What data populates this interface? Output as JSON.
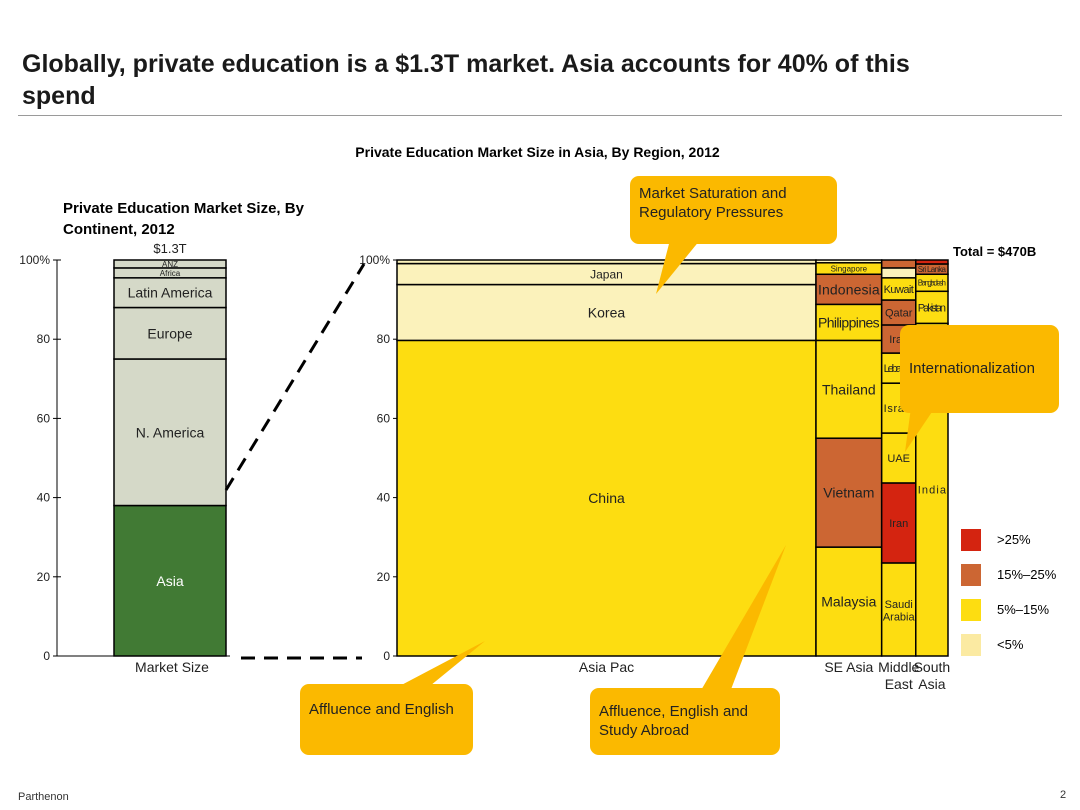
{
  "page": {
    "title": "Globally, private education is a $1.3T market. Asia accounts for 40% of this spend",
    "footer": "Parthenon",
    "page_number": "2"
  },
  "callouts": {
    "saturation": "Market Saturation and Regulatory  Pressures",
    "internationalization": "Internationalization",
    "affluence_english": "Affluence and English",
    "affluence_abroad": "Affluence, English and Study Abroad"
  },
  "legend": [
    {
      "label": ">25%",
      "color": "#d42410"
    },
    {
      "label": "15%–25%",
      "color": "#cc6633"
    },
    {
      "label": "5%–15%",
      "color": "#fddd11"
    },
    {
      "label": "<5%",
      "color": "#fbeaa2"
    }
  ],
  "chart_data": [
    {
      "type": "bar",
      "title": "Private Education Market Size, By Continent, 2012",
      "categories": [
        "Market Size"
      ],
      "total_label": "$1.3T",
      "ylim": [
        0,
        100
      ],
      "yticks": [
        "0",
        "20",
        "40",
        "60",
        "80",
        "100%"
      ],
      "segments": [
        {
          "label": "Asia",
          "value": 38,
          "color": "#417a34"
        },
        {
          "label": "N. America",
          "value": 37,
          "color": "#d5d9c8"
        },
        {
          "label": "Europe",
          "value": 13,
          "color": "#d5d9c8"
        },
        {
          "label": "Latin America",
          "value": 7.5,
          "color": "#d5d9c8"
        },
        {
          "label": "Africa",
          "value": 2.5,
          "color": "#d5d9c8"
        },
        {
          "label": "ANZ",
          "value": 2,
          "color": "#d5d9c8"
        }
      ]
    },
    {
      "type": "bar",
      "title": "Private Education Market Size in Asia, By Region, 2012",
      "total_label": "Total = $470B",
      "ylim": [
        0,
        100
      ],
      "yticks": [
        "0",
        "20",
        "40",
        "60",
        "80",
        "100%"
      ],
      "columns": [
        {
          "category": "Asia Pac",
          "width_share": 67.6,
          "segments": [
            {
              "label": "China",
              "value": 79.7,
              "color": "#fddd11"
            },
            {
              "label": "Korea",
              "value": 14.1,
              "color": "#fbf2bb"
            },
            {
              "label": "Japan",
              "value": 5.3,
              "color": "#fbf2bb"
            },
            {
              "label": "",
              "value": 0.9,
              "color": "#fbf2bb"
            }
          ]
        },
        {
          "category": "SE Asia",
          "width_share": 10.6,
          "segments": [
            {
              "label": "Malaysia",
              "value": 27.5,
              "color": "#fddd11"
            },
            {
              "label": "Vietnam",
              "value": 27.5,
              "color": "#cc6633"
            },
            {
              "label": "Thailand",
              "value": 24.7,
              "color": "#fddd11"
            },
            {
              "label": "Philippines",
              "value": 9.1,
              "color": "#fddd11"
            },
            {
              "label": "Indonesia",
              "value": 7.6,
              "color": "#cc6633"
            },
            {
              "label": "Singapore",
              "value": 2.9,
              "color": "#fddd11"
            },
            {
              "label": "",
              "value": 0.7,
              "color": "#fbf2bb"
            }
          ]
        },
        {
          "category": "Middle East",
          "width_share": 5.5,
          "segments": [
            {
              "label": "Saudi Arabia",
              "value": 23.5,
              "color": "#fddd11"
            },
            {
              "label": "Iran",
              "value": 20.2,
              "color": "#d42410"
            },
            {
              "label": "UAE",
              "value": 12.6,
              "color": "#fddd11"
            },
            {
              "label": "Israel",
              "value": 12.6,
              "color": "#fddd11"
            },
            {
              "label": "Lebanon",
              "value": 7.6,
              "color": "#fddd11"
            },
            {
              "label": "Iraq",
              "value": 7.1,
              "color": "#cc6633"
            },
            {
              "label": "Qatar",
              "value": 6.3,
              "color": "#cc6633"
            },
            {
              "label": "Kuwait",
              "value": 5.6,
              "color": "#fddd11"
            },
            {
              "label": "",
              "value": 2.5,
              "color": "#fbf2bb"
            },
            {
              "label": "",
              "value": 2.0,
              "color": "#cc6633"
            }
          ]
        },
        {
          "category": "South Asia",
          "width_share": 5.2,
          "segments": [
            {
              "label": "India",
              "value": 84.0,
              "color": "#fddd11"
            },
            {
              "label": "Pakistan",
              "value": 8.1,
              "color": "#fddd11"
            },
            {
              "label": "Bangladesh",
              "value": 4.3,
              "color": "#fddd11"
            },
            {
              "label": "Sri Lanka",
              "value": 2.6,
              "color": "#cc6633"
            },
            {
              "label": "",
              "value": 1.0,
              "color": "#d42410"
            }
          ]
        }
      ]
    }
  ]
}
